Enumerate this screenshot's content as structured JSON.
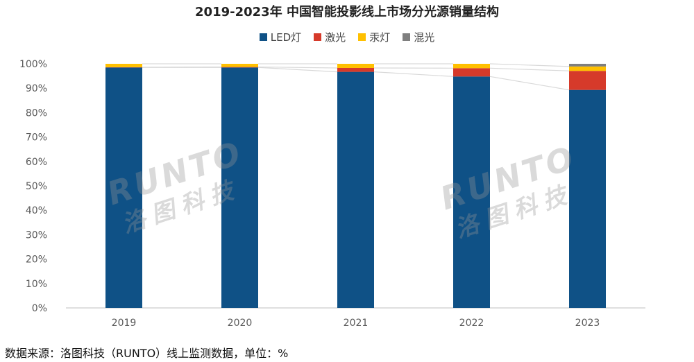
{
  "chart_data": {
    "type": "bar",
    "stacked": true,
    "title": "2019-2023年 中国智能投影线上市场分光源销量结构",
    "categories": [
      "2019",
      "2020",
      "2021",
      "2022",
      "2023"
    ],
    "series": [
      {
        "name": "LED灯",
        "color": "#0F5186",
        "values": [
          98.5,
          98.5,
          96.7,
          94.8,
          89.3
        ]
      },
      {
        "name": "激光",
        "color": "#D63A2A",
        "values": [
          0.1,
          0.2,
          1.6,
          3.4,
          7.8
        ]
      },
      {
        "name": "汞灯",
        "color": "#FFC000",
        "values": [
          1.4,
          1.3,
          1.7,
          1.8,
          1.8
        ]
      },
      {
        "name": "混光",
        "color": "#7F7F7F",
        "values": [
          0.0,
          0.0,
          0.0,
          0.0,
          1.1
        ]
      }
    ],
    "y_ticks": [
      "0%",
      "10%",
      "20%",
      "30%",
      "40%",
      "50%",
      "60%",
      "70%",
      "80%",
      "90%",
      "100%"
    ],
    "ylim": [
      0,
      100
    ],
    "legend_position": "top-center",
    "grid": false,
    "series_lines": true
  },
  "watermark": {
    "latin": "RUNTO",
    "cjk": "洛图科技"
  },
  "source_text": "数据来源：洛图科技（RUNTO）线上监测数据，单位：%"
}
